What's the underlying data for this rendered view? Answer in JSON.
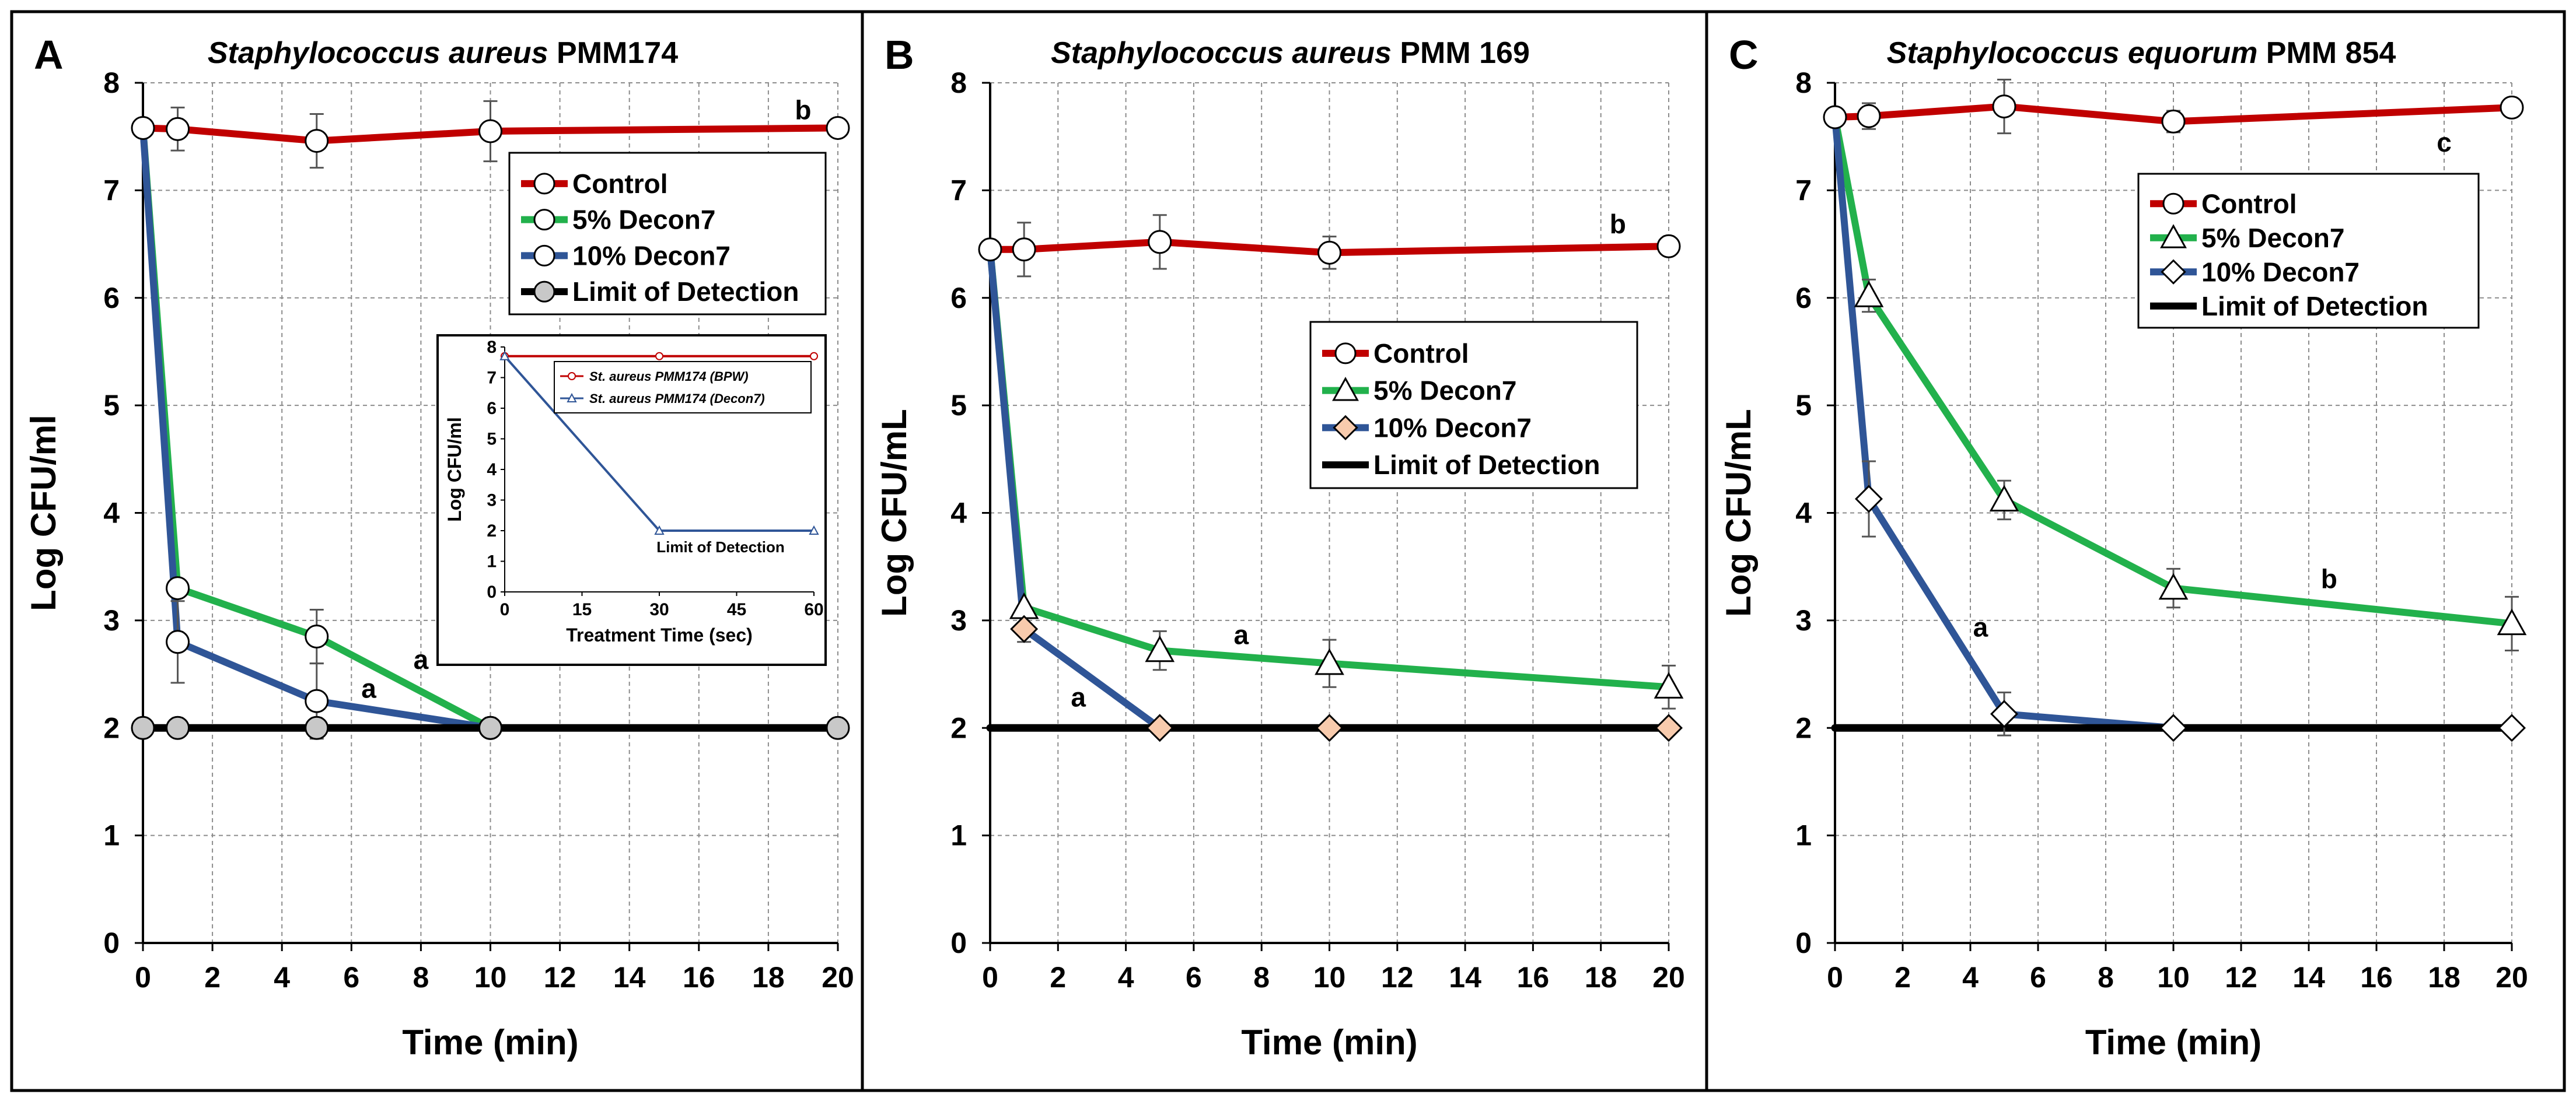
{
  "colors": {
    "control": "#c00000",
    "decon5": "#22b14c",
    "decon10": "#2f5597",
    "lod": "#000000",
    "grid": "#8c8c8c",
    "marker_fill": "#ffffff",
    "lod_marker_fill": "#c8c8c8",
    "diamond_B_fill": "#f8cbad"
  },
  "chart_data": [
    {
      "type": "line",
      "panel": "A",
      "title_italic": "Staphylococcus aureus",
      "title_rest": " PMM174",
      "xlabel": "Time (min)",
      "ylabel": "Log CFU/ml",
      "xlim": [
        0,
        20
      ],
      "ylim": [
        0,
        8
      ],
      "xticks": [
        0,
        2,
        4,
        6,
        8,
        10,
        12,
        14,
        16,
        18,
        20
      ],
      "yticks": [
        0,
        1,
        2,
        3,
        4,
        5,
        6,
        7,
        8
      ],
      "legend": [
        "Control",
        "5% Decon7",
        "10% Decon7",
        "Limit of Detection"
      ],
      "legend_position": "top-right",
      "series": [
        {
          "name": "Control",
          "color_key": "control",
          "marker": "circle",
          "x": [
            0,
            1,
            5,
            10,
            20
          ],
          "y": [
            7.58,
            7.57,
            7.46,
            7.55,
            7.58
          ],
          "err": [
            0,
            0.2,
            0.25,
            0.28,
            0
          ]
        },
        {
          "name": "5% Decon7",
          "color_key": "decon5",
          "marker": "circle",
          "x": [
            0,
            1,
            5,
            10
          ],
          "y": [
            7.58,
            3.3,
            2.85,
            2.0
          ],
          "err": [
            0,
            0,
            0.25,
            0
          ]
        },
        {
          "name": "10% Decon7",
          "color_key": "decon10",
          "marker": "circle",
          "x": [
            0,
            1,
            5,
            10
          ],
          "y": [
            7.58,
            2.8,
            2.25,
            2.0
          ],
          "err": [
            0,
            0.38,
            0.35,
            0
          ]
        },
        {
          "name": "Limit of Detection",
          "color_key": "lod",
          "marker": "circle-gray",
          "x": [
            0,
            1,
            5,
            10,
            20
          ],
          "y": [
            2.0,
            2.0,
            2.0,
            2.0,
            2.0
          ],
          "err": [
            0,
            0,
            0,
            0,
            0
          ]
        }
      ],
      "annotations": [
        {
          "text": "b",
          "x": 19.0,
          "y": 7.66
        },
        {
          "text": "a",
          "x": 8.0,
          "y": 2.55
        },
        {
          "text": "a",
          "x": 6.5,
          "y": 2.28
        }
      ],
      "inset": {
        "type": "line",
        "xlabel": "Treatment Time (sec)",
        "ylabel": "Log CFU/ml",
        "xlim": [
          0,
          60
        ],
        "ylim": [
          0,
          8
        ],
        "xticks": [
          0,
          15,
          30,
          45,
          60
        ],
        "yticks": [
          0,
          1,
          2,
          3,
          4,
          5,
          6,
          7,
          8
        ],
        "legend": [
          "St. aureus PMM174 (BPW)",
          "St. aureus PMM174 (Decon7)"
        ],
        "annotation": "Limit of Detection",
        "series": [
          {
            "name": "St. aureus PMM174 (BPW)",
            "color_key": "control",
            "marker": "circle",
            "x": [
              0,
              30,
              60
            ],
            "y": [
              7.7,
              7.7,
              7.7
            ]
          },
          {
            "name": "St. aureus PMM174 (Decon7)",
            "color_key": "decon10",
            "marker": "triangle",
            "x": [
              0,
              30,
              60
            ],
            "y": [
              7.7,
              2.0,
              2.0
            ]
          }
        ]
      }
    },
    {
      "type": "line",
      "panel": "B",
      "title_italic": "Staphylococcus aureus",
      "title_rest": " PMM 169",
      "xlabel": "Time (min)",
      "ylabel": "Log CFU/mL",
      "xlim": [
        0,
        20
      ],
      "ylim": [
        0,
        8
      ],
      "xticks": [
        0,
        2,
        4,
        6,
        8,
        10,
        12,
        14,
        16,
        18,
        20
      ],
      "yticks": [
        0,
        1,
        2,
        3,
        4,
        5,
        6,
        7,
        8
      ],
      "legend": [
        "Control",
        "5% Decon7",
        "10% Decon7",
        "Limit of Detection"
      ],
      "legend_position": "center-right",
      "series": [
        {
          "name": "Control",
          "color_key": "control",
          "marker": "circle",
          "x": [
            0,
            1,
            5,
            10,
            20
          ],
          "y": [
            6.45,
            6.45,
            6.52,
            6.42,
            6.48
          ],
          "err": [
            0,
            0.25,
            0.25,
            0.15,
            0
          ]
        },
        {
          "name": "5% Decon7",
          "color_key": "decon5",
          "marker": "triangle",
          "x": [
            0,
            1,
            5,
            10,
            20
          ],
          "y": [
            6.45,
            3.12,
            2.72,
            2.6,
            2.38
          ],
          "err": [
            0,
            0,
            0.18,
            0.22,
            0.2
          ]
        },
        {
          "name": "10% Decon7",
          "color_key": "decon10",
          "marker": "diamond",
          "x": [
            0,
            1,
            5,
            10,
            20
          ],
          "y": [
            6.45,
            2.92,
            2.0,
            2.0,
            2.0
          ],
          "err": [
            0,
            0.12,
            0,
            0,
            0
          ]
        },
        {
          "name": "Limit of Detection",
          "color_key": "lod",
          "marker": "none",
          "x": [
            0,
            20
          ],
          "y": [
            2.0,
            2.0
          ],
          "err": [
            0,
            0
          ]
        }
      ],
      "annotations": [
        {
          "text": "b",
          "x": 18.5,
          "y": 6.6
        },
        {
          "text": "a",
          "x": 7.4,
          "y": 2.78
        },
        {
          "text": "a",
          "x": 2.6,
          "y": 2.2
        }
      ]
    },
    {
      "type": "line",
      "panel": "C",
      "title_italic": "Staphylococcus equorum",
      "title_rest": " PMM 854",
      "xlabel": "Time (min)",
      "ylabel": "Log CFU/mL",
      "xlim": [
        0,
        20
      ],
      "ylim": [
        0,
        8
      ],
      "xticks": [
        0,
        2,
        4,
        6,
        8,
        10,
        12,
        14,
        16,
        18,
        20
      ],
      "yticks": [
        0,
        1,
        2,
        3,
        4,
        5,
        6,
        7,
        8
      ],
      "legend": [
        "Control",
        "5% Decon7",
        "10% Decon7",
        "Limit of Detection"
      ],
      "legend_position": "top-right",
      "series": [
        {
          "name": "Control",
          "color_key": "control",
          "marker": "circle",
          "x": [
            0,
            1,
            5,
            10,
            20
          ],
          "y": [
            7.68,
            7.69,
            7.78,
            7.64,
            7.77
          ],
          "err": [
            0,
            0.12,
            0.25,
            0.1,
            0
          ]
        },
        {
          "name": "5% Decon7",
          "color_key": "decon5",
          "marker": "triangle",
          "x": [
            0,
            1,
            5,
            10,
            20
          ],
          "y": [
            7.68,
            6.02,
            4.12,
            3.3,
            2.97
          ],
          "err": [
            0,
            0.15,
            0.18,
            0.18,
            0.25
          ]
        },
        {
          "name": "10% Decon7",
          "color_key": "decon10",
          "marker": "diamond",
          "x": [
            0,
            1,
            5,
            10,
            20
          ],
          "y": [
            7.68,
            4.13,
            2.13,
            2.0,
            2.0
          ],
          "err": [
            0,
            0.35,
            0.2,
            0,
            0
          ]
        },
        {
          "name": "Limit of Detection",
          "color_key": "lod",
          "marker": "none",
          "x": [
            0,
            20
          ],
          "y": [
            2.0,
            2.0
          ],
          "err": [
            0,
            0
          ]
        }
      ],
      "annotations": [
        {
          "text": "c",
          "x": 18.0,
          "y": 7.36
        },
        {
          "text": "b",
          "x": 14.6,
          "y": 3.3
        },
        {
          "text": "a",
          "x": 4.3,
          "y": 2.85
        }
      ]
    }
  ]
}
